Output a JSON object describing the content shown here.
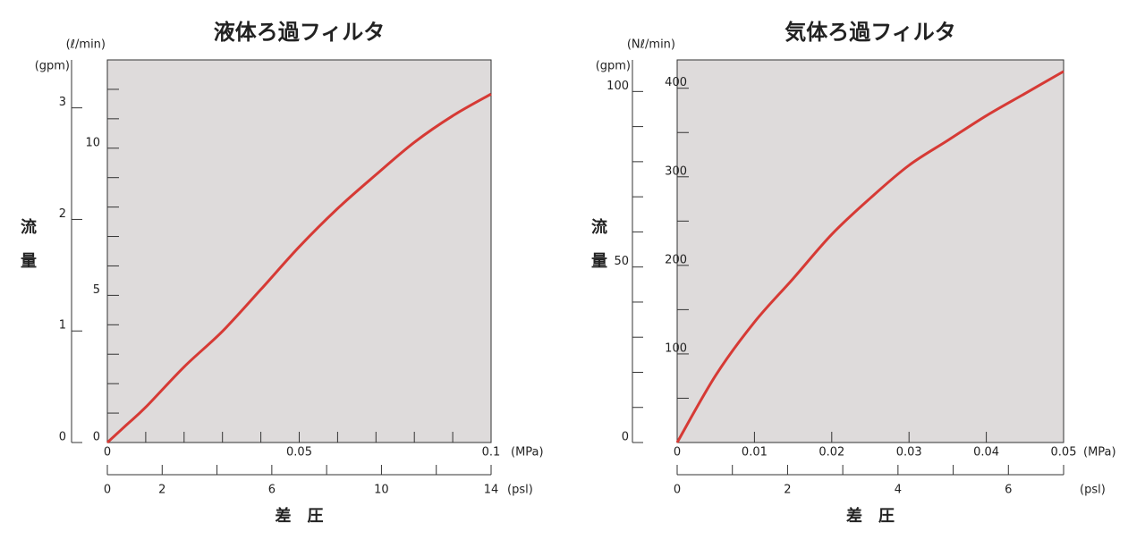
{
  "chart_data": [
    {
      "type": "line",
      "title": "液体ろ過フィルタ",
      "y_label": "流量",
      "x_label": "差　圧",
      "x": [
        0,
        0.005,
        0.01,
        0.02,
        0.03,
        0.04,
        0.05,
        0.06,
        0.07,
        0.08,
        0.09,
        0.1
      ],
      "series": [
        {
          "color": "#d63a35",
          "values": [
            0,
            0.6,
            1.2,
            2.57,
            3.78,
            5.2,
            6.65,
            7.95,
            9.1,
            10.2,
            11.1,
            11.84
          ]
        }
      ],
      "xlim": [
        0,
        0.1
      ],
      "xticks": [
        0,
        0.05,
        0.1
      ],
      "x_minor_ticks": [
        0.01,
        0.02,
        0.03,
        0.04,
        0.06,
        0.07,
        0.08,
        0.09
      ],
      "x_unit": "(MPa)",
      "x2lim": [
        0,
        14
      ],
      "x2ticks": [
        0,
        2,
        6,
        10,
        14
      ],
      "x2_minor_ticks": [
        4,
        8,
        12
      ],
      "x2_unit": "(psl)",
      "ylim": [
        0,
        13
      ],
      "yticks": [
        0,
        5,
        10
      ],
      "y_minor_ticks": [
        1,
        2,
        3,
        4,
        6,
        7,
        8,
        9,
        11,
        12
      ],
      "y_unit": "(ℓ/min)",
      "y2lim": [
        0,
        3.43
      ],
      "y2ticks": [
        0,
        1,
        2,
        3
      ],
      "y2_unit": "(gpm)"
    },
    {
      "type": "line",
      "title": "気体ろ過フィルタ",
      "y_label": "流量",
      "x_label": "差　圧",
      "x": [
        0,
        0.005,
        0.01,
        0.015,
        0.02,
        0.025,
        0.03,
        0.035,
        0.04,
        0.045,
        0.05
      ],
      "series": [
        {
          "color": "#d63a35",
          "values": [
            0,
            76,
            136,
            185,
            235,
            276,
            313,
            341,
            369,
            394,
            419
          ]
        }
      ],
      "xlim": [
        0,
        0.05
      ],
      "xticks": [
        0,
        0.01,
        0.02,
        0.03,
        0.04,
        0.05
      ],
      "x_minor_ticks": [],
      "x_unit": "(MPa)",
      "x2lim": [
        0,
        7
      ],
      "x2ticks": [
        0,
        2,
        4,
        6
      ],
      "x2_minor_ticks": [
        1,
        3,
        5,
        7
      ],
      "x2_unit": "(psl)",
      "ylim": [
        0,
        432
      ],
      "yticks": [
        100,
        200,
        300,
        400
      ],
      "y_minor_ticks": [
        50,
        150,
        250,
        350
      ],
      "y_unit": "(Nℓ/min)",
      "y2lim": [
        0,
        109
      ],
      "y2ticks": [
        0,
        50,
        100
      ],
      "y2_minor_ticks": [
        10,
        20,
        30,
        40,
        60,
        70,
        80,
        90
      ],
      "y2_unit": "(gpm)"
    }
  ]
}
